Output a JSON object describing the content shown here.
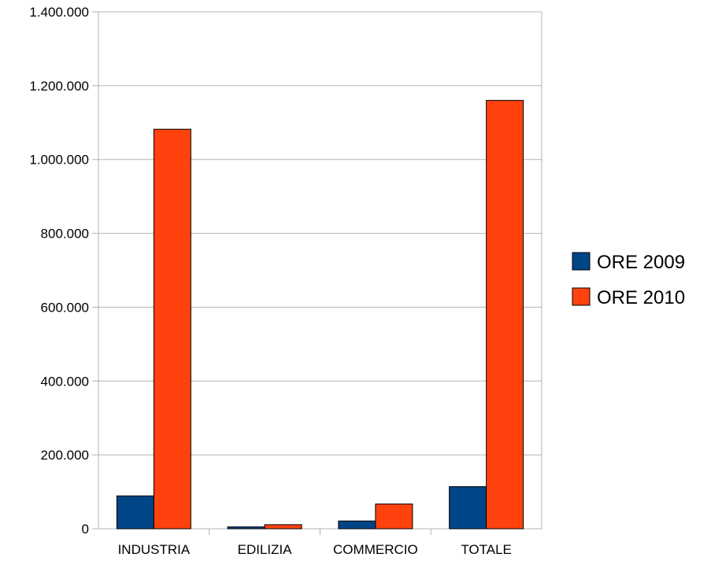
{
  "chart_data": {
    "type": "bar",
    "categories": [
      "INDUSTRIA",
      "EDILIZIA",
      "COMMERCIO",
      "TOTALE"
    ],
    "series": [
      {
        "name": "ORE 2009",
        "color": "#004586",
        "values": [
          89000,
          5000,
          21000,
          114000
        ]
      },
      {
        "name": "ORE 2010",
        "color": "#ff420e",
        "values": [
          1082000,
          11000,
          67000,
          1160000
        ]
      }
    ],
    "ylim": [
      0,
      1400000
    ],
    "yticks": [
      0,
      200000,
      400000,
      600000,
      800000,
      1000000,
      1200000,
      1400000
    ],
    "ytick_labels": [
      "0",
      "200.000",
      "400.000",
      "600.000",
      "800.000",
      "1.000.000",
      "1.200.000",
      "1.400.000"
    ],
    "grid": true,
    "legend_position": "right",
    "title": "",
    "xlabel": "",
    "ylabel": ""
  }
}
